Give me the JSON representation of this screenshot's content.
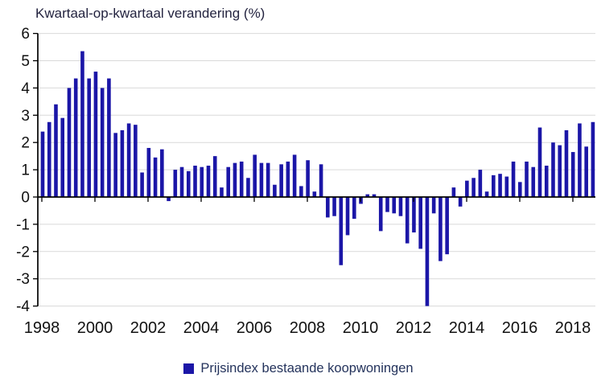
{
  "title": "Kwartaal-op-kwartaal verandering (%)",
  "legend": {
    "label": "Prijsindex bestaande koopwoningen",
    "color": "#1b16a7"
  },
  "colors": {
    "bar": "#1b16a7",
    "grid": "#d9d9d9",
    "axis": "#000000",
    "tick_label": "#111111"
  },
  "chart_data": {
    "type": "bar",
    "title": "Kwartaal-op-kwartaal verandering (%)",
    "ylabel": "",
    "xlabel": "",
    "ylim": [
      -4,
      6
    ],
    "y_ticks": [
      -4,
      -3,
      -2,
      -1,
      0,
      1,
      2,
      3,
      4,
      5,
      6
    ],
    "x_tick_labels": [
      "1998",
      "2000",
      "2002",
      "2004",
      "2006",
      "2008",
      "2010",
      "2012",
      "2014",
      "2016",
      "2018"
    ],
    "grid": "horizontal",
    "legend_position": "bottom",
    "legend_entries": [
      "Prijsindex bestaande koopwoningen"
    ],
    "categories": [
      "1998 Q1",
      "1998 Q2",
      "1998 Q3",
      "1998 Q4",
      "1999 Q1",
      "1999 Q2",
      "1999 Q3",
      "1999 Q4",
      "2000 Q1",
      "2000 Q2",
      "2000 Q3",
      "2000 Q4",
      "2001 Q1",
      "2001 Q2",
      "2001 Q3",
      "2001 Q4",
      "2002 Q1",
      "2002 Q2",
      "2002 Q3",
      "2002 Q4",
      "2003 Q1",
      "2003 Q2",
      "2003 Q3",
      "2003 Q4",
      "2004 Q1",
      "2004 Q2",
      "2004 Q3",
      "2004 Q4",
      "2005 Q1",
      "2005 Q2",
      "2005 Q3",
      "2005 Q4",
      "2006 Q1",
      "2006 Q2",
      "2006 Q3",
      "2006 Q4",
      "2007 Q1",
      "2007 Q2",
      "2007 Q3",
      "2007 Q4",
      "2008 Q1",
      "2008 Q2",
      "2008 Q3",
      "2008 Q4",
      "2009 Q1",
      "2009 Q2",
      "2009 Q3",
      "2009 Q4",
      "2010 Q1",
      "2010 Q2",
      "2010 Q3",
      "2010 Q4",
      "2011 Q1",
      "2011 Q2",
      "2011 Q3",
      "2011 Q4",
      "2012 Q1",
      "2012 Q2",
      "2012 Q3",
      "2012 Q4",
      "2013 Q1",
      "2013 Q2",
      "2013 Q3",
      "2013 Q4",
      "2014 Q1",
      "2014 Q2",
      "2014 Q3",
      "2014 Q4",
      "2015 Q1",
      "2015 Q2",
      "2015 Q3",
      "2015 Q4",
      "2016 Q1",
      "2016 Q2",
      "2016 Q3",
      "2016 Q4",
      "2017 Q1",
      "2017 Q2",
      "2017 Q3",
      "2017 Q4",
      "2018 Q1",
      "2018 Q2",
      "2018 Q3",
      "2018 Q4"
    ],
    "values": [
      2.4,
      2.75,
      3.4,
      2.9,
      4.0,
      4.35,
      5.35,
      4.35,
      4.6,
      4.0,
      4.35,
      2.35,
      2.45,
      2.7,
      2.65,
      0.9,
      1.8,
      1.45,
      1.75,
      -0.15,
      1.0,
      1.1,
      0.95,
      1.15,
      1.1,
      1.15,
      1.5,
      0.35,
      1.1,
      1.25,
      1.3,
      0.7,
      1.55,
      1.25,
      1.25,
      0.45,
      1.2,
      1.3,
      1.55,
      0.4,
      1.35,
      0.2,
      1.2,
      -0.75,
      -0.7,
      -2.5,
      -1.4,
      -0.8,
      -0.25,
      0.1,
      0.1,
      -1.25,
      -0.55,
      -0.6,
      -0.7,
      -1.7,
      -1.3,
      -1.9,
      -4.0,
      -0.6,
      -2.35,
      -2.1,
      0.35,
      -0.35,
      0.6,
      0.7,
      1.0,
      0.2,
      0.8,
      0.85,
      0.75,
      1.3,
      0.55,
      1.3,
      1.1,
      2.55,
      1.15,
      2.0,
      1.9,
      2.45,
      1.65,
      2.7,
      1.85,
      2.75
    ]
  }
}
